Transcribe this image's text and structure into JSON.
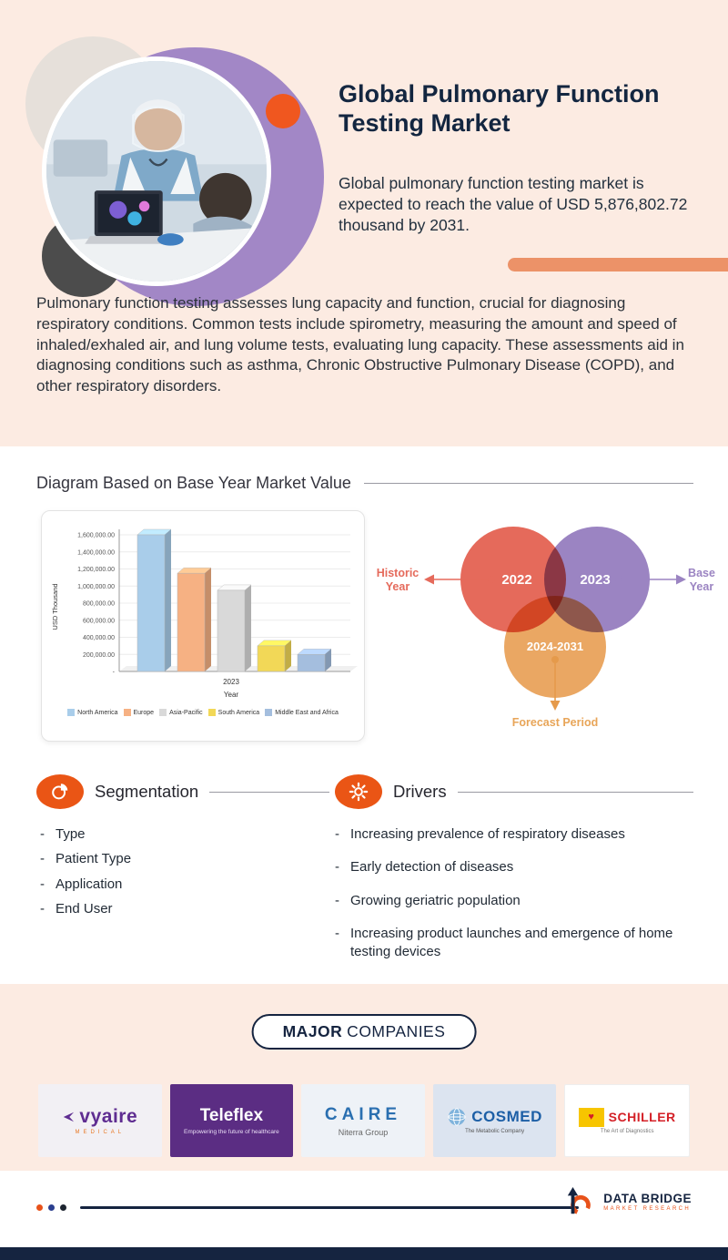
{
  "hero": {
    "title": "Global Pulmonary Function Testing Market",
    "subtitle": "Global pulmonary function testing market is expected to reach the value of USD 5,876,802.72 thousand by 2031.",
    "description": "Pulmonary function testing assesses lung capacity and function, crucial for diagnosing respiratory conditions. Common tests include spirometry, measuring the amount and speed of inhaled/exhaled air, and lung volume tests, evaluating lung capacity. These assessments aid in diagnosing conditions such as asthma, Chronic Obstructive Pulmonary Disease (COPD), and other respiratory disorders."
  },
  "diagram_section": {
    "heading": "Diagram Based on Base Year Market Value"
  },
  "chart_data": {
    "type": "bar",
    "title": "",
    "categories": [
      "2023"
    ],
    "xlabel": "Year",
    "ylabel": "USD Thousand",
    "ylim": [
      0,
      1600000
    ],
    "grid": true,
    "legend_position": "bottom",
    "ytick_labels": [
      "1,600,000.00",
      "1,400,000.00",
      "1,200,000.00",
      "1,000,000.00",
      "800,000.00",
      "600,000.00",
      "400,000.00",
      "200,000.00",
      "-"
    ],
    "series": [
      {
        "name": "North America",
        "color": "#a9cdea",
        "values": [
          1600000
        ]
      },
      {
        "name": "Europe",
        "color": "#f6b183",
        "values": [
          1150000
        ]
      },
      {
        "name": "Asia-Pacific",
        "color": "#d9d9d9",
        "values": [
          950000
        ]
      },
      {
        "name": "South America",
        "color": "#f2d857",
        "values": [
          300000
        ]
      },
      {
        "name": "Middle East and Africa",
        "color": "#a4bede",
        "values": [
          200000
        ]
      }
    ]
  },
  "venn": {
    "historic": {
      "year": "2022",
      "line1": "Historic",
      "line2": "Year",
      "color": "#e56a5b"
    },
    "base": {
      "year": "2023",
      "line1": "Base",
      "line2": "Year",
      "color": "#9b84c2"
    },
    "forecast": {
      "year": "2024-2031",
      "label": "Forecast Period",
      "color": "#e8a558"
    }
  },
  "segmentation": {
    "heading": "Segmentation",
    "items": [
      "Type",
      "Patient Type",
      "Application",
      "End User"
    ]
  },
  "drivers": {
    "heading": "Drivers",
    "items": [
      "Increasing prevalence of respiratory diseases",
      "Early detection of diseases",
      "Growing geriatric population",
      "Increasing product launches and emergence of home testing devices"
    ]
  },
  "companies": {
    "label_major": "MAJOR",
    "label_companies": "COMPANIES",
    "logos": [
      {
        "name": "vyaire",
        "sub": "MEDICAL"
      },
      {
        "name": "Teleflex",
        "sub": "Empowering the future of healthcare"
      },
      {
        "name": "CAIRE",
        "sub": "Niterra Group"
      },
      {
        "name": "COSMED",
        "sub": "The Metabolic Company"
      },
      {
        "name": "SCHILLER",
        "sub": "The Art of Diagnostics"
      }
    ]
  },
  "footer": {
    "brand_name": "DATA BRIDGE",
    "brand_tagline": "MARKET RESEARCH"
  },
  "colors": {
    "accent_orange": "#e8521a",
    "navy": "#152440",
    "peach": "#fcebe2",
    "purple": "#a287c6"
  }
}
